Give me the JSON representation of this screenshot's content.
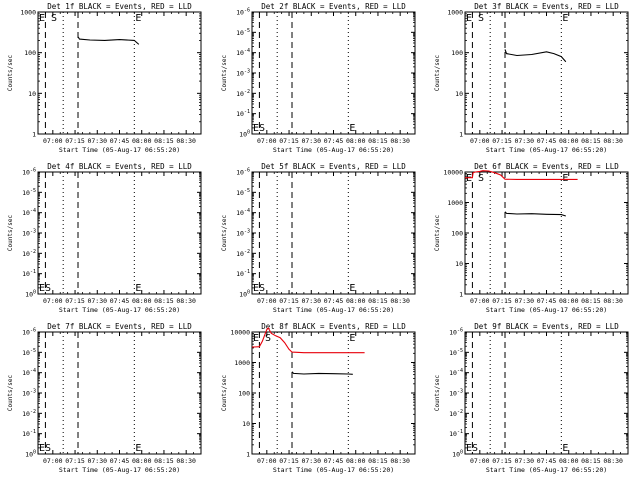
{
  "chart_data": [
    {
      "type": "line",
      "title": "Det 1f BLACK = Events, RED = LLD",
      "ylabel": "Counts/sec",
      "xlabel": "Start Time (05-Aug-17 06:55:20)",
      "yscale": "log",
      "ylim": [
        1,
        1000
      ],
      "yticks": [
        "1",
        "10",
        "100",
        "1000"
      ],
      "xlim_minutes": [
        -10,
        100
      ],
      "xticks": [
        "07:00",
        "07:15",
        "07:30",
        "07:45",
        "08:00",
        "08:15",
        "08:30"
      ],
      "markers": {
        "es": "E S",
        "e": "E"
      },
      "marker_pos": "top",
      "vlines": [
        {
          "t": -5,
          "style": "dash"
        },
        {
          "t": 7,
          "style": "dot"
        },
        {
          "t": 17,
          "style": "dash"
        },
        {
          "t": 55,
          "style": "dot"
        }
      ],
      "series": [
        {
          "color": "#000000",
          "x": [
            17,
            18,
            25,
            35,
            45,
            55,
            58
          ],
          "y": [
            245,
            215,
            205,
            200,
            210,
            200,
            160
          ]
        }
      ]
    },
    {
      "type": "line",
      "title": "Det 2f BLACK = Events, RED = LLD",
      "ylabel": "Counts/sec",
      "xlabel": "Start Time (05-Aug-17 06:55:20)",
      "yscale": "log",
      "ylim": [
        1,
        1000000
      ],
      "yticks": [
        "10^0",
        "10^-1",
        "10^-2",
        "10^-3",
        "10^-4",
        "10^-5",
        "10^-6"
      ],
      "xlim_minutes": [
        -10,
        100
      ],
      "xticks": [
        "07:00",
        "07:15",
        "07:30",
        "07:45",
        "08:00",
        "08:15",
        "08:30"
      ],
      "markers": {
        "es": "ES",
        "e": "E"
      },
      "marker_pos": "bottom",
      "vlines": [
        {
          "t": -5,
          "style": "dash"
        },
        {
          "t": 7,
          "style": "dot"
        },
        {
          "t": 17,
          "style": "dash"
        },
        {
          "t": 55,
          "style": "dot"
        }
      ],
      "series": []
    },
    {
      "type": "line",
      "title": "Det 3f BLACK = Events, RED = LLD",
      "ylabel": "Counts/sec",
      "xlabel": "Start Time (05-Aug-17 06:55:20)",
      "yscale": "log",
      "ylim": [
        1,
        1000
      ],
      "yticks": [
        "1",
        "10",
        "100",
        "1000"
      ],
      "xlim_minutes": [
        -10,
        100
      ],
      "xticks": [
        "07:00",
        "07:15",
        "07:30",
        "07:45",
        "08:00",
        "08:15",
        "08:30"
      ],
      "markers": {
        "es": "E S",
        "e": "E"
      },
      "marker_pos": "top",
      "vlines": [
        {
          "t": -5,
          "style": "dash"
        },
        {
          "t": 7,
          "style": "dot"
        },
        {
          "t": 17,
          "style": "dash"
        },
        {
          "t": 55,
          "style": "dot"
        }
      ],
      "series": [
        {
          "color": "#000000",
          "x": [
            17,
            18,
            25,
            35,
            45,
            50,
            55,
            58
          ],
          "y": [
            120,
            95,
            85,
            90,
            105,
            95,
            80,
            60
          ]
        }
      ]
    },
    {
      "type": "line",
      "title": "Det 4f BLACK = Events, RED = LLD",
      "ylabel": "Counts/sec",
      "xlabel": "Start Time (05-Aug-17 06:55:20)",
      "yscale": "log",
      "ylim": [
        1,
        1000000
      ],
      "yticks": [
        "10^0",
        "10^-1",
        "10^-2",
        "10^-3",
        "10^-4",
        "10^-5",
        "10^-6"
      ],
      "xlim_minutes": [
        -10,
        100
      ],
      "xticks": [
        "07:00",
        "07:15",
        "07:30",
        "07:45",
        "08:00",
        "08:15",
        "08:30"
      ],
      "markers": {
        "es": "ES",
        "e": "E"
      },
      "marker_pos": "bottom",
      "vlines": [
        {
          "t": -5,
          "style": "dash"
        },
        {
          "t": 7,
          "style": "dot"
        },
        {
          "t": 17,
          "style": "dash"
        },
        {
          "t": 55,
          "style": "dot"
        }
      ],
      "series": []
    },
    {
      "type": "line",
      "title": "Det 5f BLACK = Events, RED = LLD",
      "ylabel": "Counts/sec",
      "xlabel": "Start Time (05-Aug-17 06:55:20)",
      "yscale": "log",
      "ylim": [
        1,
        1000000
      ],
      "yticks": [
        "10^0",
        "10^-1",
        "10^-2",
        "10^-3",
        "10^-4",
        "10^-5",
        "10^-6"
      ],
      "xlim_minutes": [
        -10,
        100
      ],
      "xticks": [
        "07:00",
        "07:15",
        "07:30",
        "07:45",
        "08:00",
        "08:15",
        "08:30"
      ],
      "markers": {
        "es": "ES",
        "e": "E"
      },
      "marker_pos": "bottom",
      "vlines": [
        {
          "t": -5,
          "style": "dash"
        },
        {
          "t": 7,
          "style": "dot"
        },
        {
          "t": 17,
          "style": "dash"
        },
        {
          "t": 55,
          "style": "dot"
        }
      ],
      "series": []
    },
    {
      "type": "line",
      "title": "Det 6f BLACK = Events, RED = LLD",
      "ylabel": "Counts/sec",
      "xlabel": "Start Time (05-Aug-17 06:55:20)",
      "yscale": "log",
      "ylim": [
        1,
        10000
      ],
      "yticks": [
        "1",
        "10",
        "100",
        "1000",
        "10000"
      ],
      "xlim_minutes": [
        -10,
        100
      ],
      "xticks": [
        "07:00",
        "07:15",
        "07:30",
        "07:45",
        "08:00",
        "08:15",
        "08:30"
      ],
      "markers": {
        "es": "E S",
        "e": "E"
      },
      "marker_pos": "top",
      "vlines": [
        {
          "t": -5,
          "style": "dash"
        },
        {
          "t": 7,
          "style": "dot"
        },
        {
          "t": 17,
          "style": "dash"
        },
        {
          "t": 55,
          "style": "dot"
        }
      ],
      "series": [
        {
          "color": "#e8000b",
          "x": [
            -10,
            -5,
            -4.5,
            -3,
            0,
            2,
            6,
            10,
            14,
            17,
            25,
            40,
            55,
            66
          ],
          "y": [
            6500,
            6500,
            9500,
            10000,
            10500,
            11000,
            10800,
            9500,
            8000,
            5800,
            5700,
            5700,
            5700,
            5700
          ]
        },
        {
          "color": "#000000",
          "x": [
            17,
            18,
            25,
            35,
            45,
            55,
            58
          ],
          "y": [
            500,
            440,
            420,
            430,
            410,
            400,
            360
          ]
        }
      ]
    },
    {
      "type": "line",
      "title": "Det 7f BLACK = Events, RED = LLD",
      "ylabel": "Counts/sec",
      "xlabel": "Start Time (05-Aug-17 06:55:20)",
      "yscale": "log",
      "ylim": [
        1,
        1000000
      ],
      "yticks": [
        "10^0",
        "10^-1",
        "10^-2",
        "10^-3",
        "10^-4",
        "10^-5",
        "10^-6"
      ],
      "xlim_minutes": [
        -10,
        100
      ],
      "xticks": [
        "07:00",
        "07:15",
        "07:30",
        "07:45",
        "08:00",
        "08:15",
        "08:30"
      ],
      "markers": {
        "es": "ES",
        "e": "E"
      },
      "marker_pos": "bottom",
      "vlines": [
        {
          "t": -5,
          "style": "dash"
        },
        {
          "t": 7,
          "style": "dot"
        },
        {
          "t": 17,
          "style": "dash"
        },
        {
          "t": 55,
          "style": "dot"
        }
      ],
      "series": []
    },
    {
      "type": "line",
      "title": "Det 8f BLACK = Events, RED = LLD",
      "ylabel": "Counts/sec",
      "xlabel": "Start Time (05-Aug-17 06:55:20)",
      "yscale": "log",
      "ylim": [
        1,
        10000
      ],
      "yticks": [
        "1",
        "10",
        "100",
        "1000",
        "10000"
      ],
      "xlim_minutes": [
        -10,
        100
      ],
      "xticks": [
        "07:00",
        "07:15",
        "07:30",
        "07:45",
        "08:00",
        "08:15",
        "08:30"
      ],
      "markers": {
        "es": "E S",
        "e": "E"
      },
      "marker_pos": "top",
      "vlines": [
        {
          "t": -5,
          "style": "dash"
        },
        {
          "t": 7,
          "style": "dot"
        },
        {
          "t": 17,
          "style": "dash"
        },
        {
          "t": 55,
          "style": "dot"
        }
      ],
      "series": [
        {
          "color": "#e8000b",
          "x": [
            -10,
            -5,
            -3,
            -1,
            0,
            1,
            3,
            6,
            9,
            12,
            15,
            17,
            25,
            40,
            55,
            66
          ],
          "y": [
            3200,
            3300,
            5000,
            9000,
            12000,
            13500,
            9000,
            7500,
            6500,
            4500,
            2700,
            2200,
            2100,
            2100,
            2100,
            2100
          ]
        },
        {
          "color": "#000000",
          "x": [
            17,
            18,
            25,
            35,
            45,
            55,
            58
          ],
          "y": [
            500,
            440,
            420,
            440,
            430,
            420,
            410
          ]
        }
      ]
    },
    {
      "type": "line",
      "title": "Det 9f BLACK = Events, RED = LLD",
      "ylabel": "Counts/sec",
      "xlabel": "Start Time (05-Aug-17 06:55:20)",
      "yscale": "log",
      "ylim": [
        1,
        1000000
      ],
      "yticks": [
        "10^0",
        "10^-1",
        "10^-2",
        "10^-3",
        "10^-4",
        "10^-5",
        "10^-6"
      ],
      "xlim_minutes": [
        -10,
        100
      ],
      "xticks": [
        "07:00",
        "07:15",
        "07:30",
        "07:45",
        "08:00",
        "08:15",
        "08:30"
      ],
      "markers": {
        "es": "ES",
        "e": "E"
      },
      "marker_pos": "bottom",
      "vlines": [
        {
          "t": -5,
          "style": "dash"
        },
        {
          "t": 7,
          "style": "dot"
        },
        {
          "t": 17,
          "style": "dash"
        },
        {
          "t": 55,
          "style": "dot"
        }
      ],
      "series": []
    }
  ]
}
